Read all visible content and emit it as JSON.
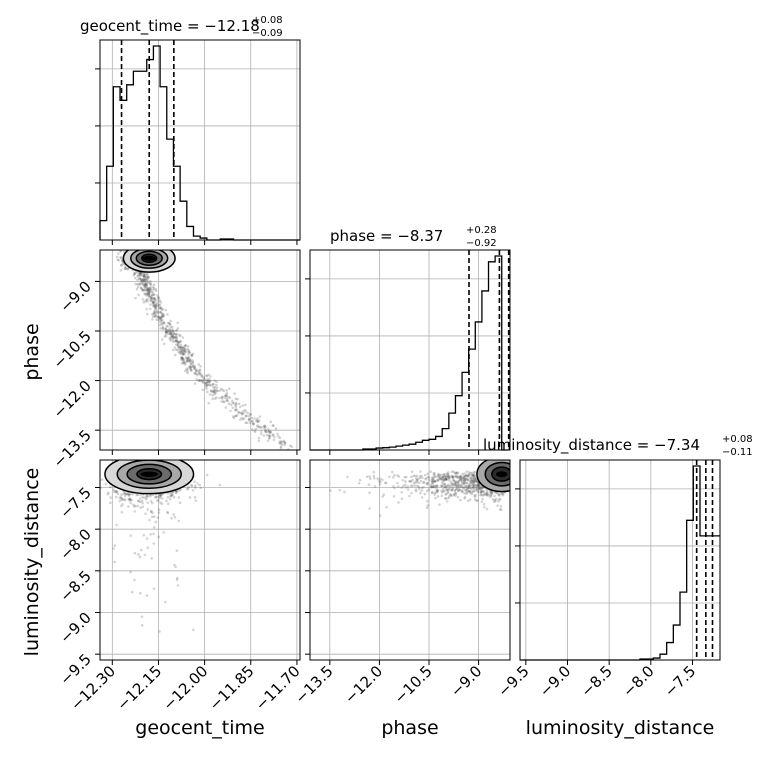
{
  "params": [
    "geocent_time",
    "phase",
    "luminosity_distance"
  ],
  "titles": [
    {
      "label": "geocent_time = −12.18",
      "plus": "+0.08",
      "minus": "−0.09"
    },
    {
      "label": "phase = −8.37",
      "plus": "+0.28",
      "minus": "−0.92"
    },
    {
      "label": "luminosity_distance = −7.34",
      "plus": "+0.08",
      "minus": "−0.11"
    }
  ],
  "chart_data": {
    "type": "corner",
    "ranges": {
      "geocent_time": [
        -12.34,
        -11.69
      ],
      "phase": [
        -14.1,
        -8.05
      ],
      "luminosity_distance": [
        -9.57,
        -7.17
      ]
    },
    "ticks": {
      "geocent_time": [
        -12.3,
        -12.15,
        -12.0,
        -11.85,
        -11.7
      ],
      "phase": [
        -13.5,
        -12.0,
        -10.5,
        -9.0
      ],
      "luminosity_distance": [
        -9.5,
        -9.0,
        -8.5,
        -8.0,
        -7.5
      ]
    },
    "tick_labels": {
      "geocent_time": [
        "−12.30",
        "−12.15",
        "−12.00",
        "−11.85",
        "−11.70"
      ],
      "phase": [
        "−13.5",
        "−12.0",
        "−10.5",
        "−9.0"
      ],
      "luminosity_distance": [
        "−9.5",
        "−9.0",
        "−8.5",
        "−8.0",
        "−7.5"
      ]
    },
    "histograms": {
      "geocent_time": {
        "edges_start": -12.34,
        "bin_width": 0.0217,
        "counts": [
          0.1,
          0.38,
          0.79,
          0.72,
          0.8,
          0.87,
          0.87,
          0.93,
          1.0,
          0.79,
          0.52,
          0.38,
          0.2,
          0.07,
          0.02,
          0.01,
          0.0,
          0.0,
          0.005,
          0.005,
          0.0,
          0.0,
          0.0,
          0.0,
          0.0,
          0.0,
          0.0,
          0.0,
          0.0,
          0.0
        ],
        "quantiles": [
          -12.27,
          -12.18,
          -12.1
        ]
      },
      "phase": {
        "edges_start": -14.1,
        "bin_width": 0.2,
        "counts": [
          0.0,
          0.0,
          0.0,
          0.0,
          0.0,
          0.0,
          0.0,
          0.0,
          0.005,
          0.005,
          0.01,
          0.012,
          0.015,
          0.02,
          0.025,
          0.03,
          0.04,
          0.05,
          0.055,
          0.07,
          0.11,
          0.19,
          0.28,
          0.4,
          0.52,
          0.66,
          0.82,
          0.97,
          1.0,
          0.0
        ],
        "quantiles": [
          -9.29,
          -8.37,
          -8.09
        ]
      },
      "luminosity_distance": {
        "edges_start": -9.57,
        "bin_width": 0.08,
        "counts": [
          0.0,
          0.0,
          0.0,
          0.0,
          0.0,
          0.0,
          0.0,
          0.0,
          0.0,
          0.0,
          0.0,
          0.0,
          0.0,
          0.0,
          0.0,
          0.0,
          0.0,
          0.0,
          0.005,
          0.005,
          0.01,
          0.03,
          0.09,
          0.18,
          0.35,
          0.72,
          1.0,
          0.64,
          0.64,
          0.64
        ],
        "quantiles": [
          -7.45,
          -7.34,
          -7.26
        ]
      }
    },
    "scatter_tracks": {
      "phase_vs_geocent_time": [
        [
          -12.26,
          -8.3
        ],
        [
          -12.22,
          -8.5
        ],
        [
          -12.2,
          -8.9
        ],
        [
          -12.19,
          -9.2
        ],
        [
          -12.17,
          -9.5
        ],
        [
          -12.16,
          -9.8
        ],
        [
          -12.14,
          -10.1
        ],
        [
          -12.12,
          -10.4
        ],
        [
          -12.1,
          -10.7
        ],
        [
          -12.08,
          -11.0
        ],
        [
          -12.06,
          -11.3
        ],
        [
          -12.04,
          -11.6
        ],
        [
          -12.01,
          -11.9
        ],
        [
          -11.98,
          -12.2
        ],
        [
          -11.94,
          -12.5
        ],
        [
          -11.9,
          -12.8
        ],
        [
          -11.86,
          -13.1
        ],
        [
          -11.82,
          -13.4
        ],
        [
          -11.78,
          -13.7
        ],
        [
          -11.73,
          -14.0
        ]
      ]
    },
    "contours": {
      "phase_vs_geocent_time": {
        "center": [
          -12.18,
          -8.3
        ],
        "radii": [
          0.06,
          0.3
        ],
        "levels": [
          0.4,
          0.7,
          1.0,
          1.4
        ]
      },
      "luminosity_distance_vs_geocent_time": {
        "center": [
          -12.18,
          -7.34
        ],
        "radii": [
          0.08,
          0.13
        ],
        "levels": [
          0.5,
          0.9,
          1.3,
          1.8
        ]
      },
      "luminosity_distance_vs_phase": {
        "center": [
          -8.3,
          -7.34
        ],
        "radii": [
          0.5,
          0.14
        ],
        "levels": [
          0.6,
          1.0,
          1.5
        ]
      }
    },
    "grid": true
  }
}
